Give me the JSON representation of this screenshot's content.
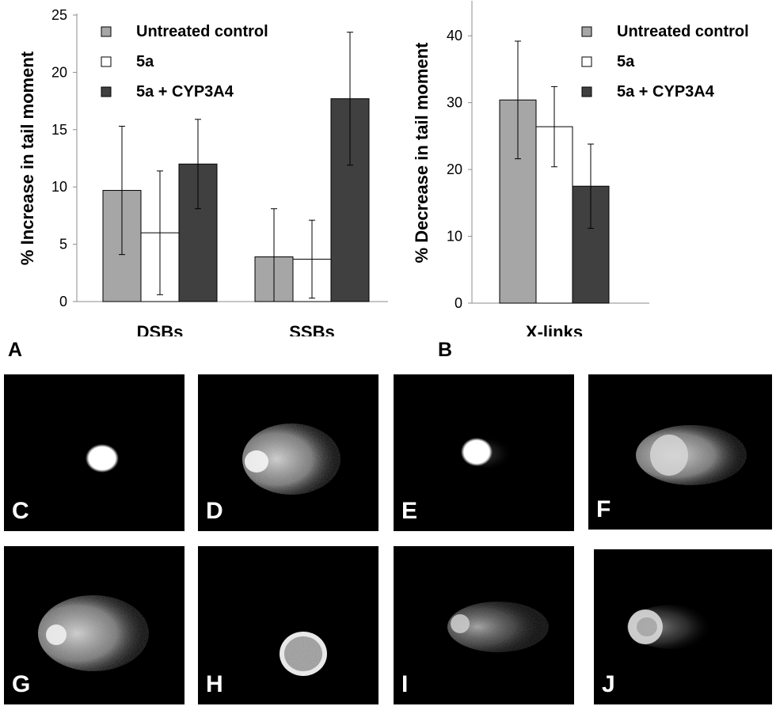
{
  "colors": {
    "untreated": "#a6a6a6",
    "five_a": "#ffffff",
    "five_a_cyp": "#404040",
    "axis": "#8c8c8c",
    "text": "#000000"
  },
  "legend": {
    "items": [
      "Untreated control",
      "5a",
      "5a + CYP3A4"
    ]
  },
  "chart_data": [
    {
      "type": "bar",
      "panel": "A",
      "ylabel": "% Increase in tail moment",
      "xlabel": "",
      "title": "",
      "ylim": [
        0,
        25
      ],
      "yticks": [
        0,
        5,
        10,
        15,
        20,
        25
      ],
      "categories": [
        "DSBs",
        "SSBs"
      ],
      "series": [
        {
          "name": "Untreated control",
          "values": [
            9.7,
            3.9
          ],
          "errors": [
            5.6,
            4.2
          ]
        },
        {
          "name": "5a",
          "values": [
            6.0,
            3.7
          ],
          "errors": [
            5.4,
            3.4
          ]
        },
        {
          "name": "5a + CYP3A4",
          "values": [
            12.0,
            17.7
          ],
          "errors": [
            3.9,
            5.8
          ]
        }
      ],
      "legend_position": "top"
    },
    {
      "type": "bar",
      "panel": "B",
      "ylabel": "% Decrease in tail moment",
      "xlabel": "",
      "title": "",
      "ylim": [
        0,
        45
      ],
      "yticks": [
        0,
        10,
        20,
        30,
        40
      ],
      "categories": [
        "X-links"
      ],
      "series": [
        {
          "name": "Untreated control",
          "values": [
            30.4
          ],
          "errors": [
            8.8
          ]
        },
        {
          "name": "5a",
          "values": [
            26.4
          ],
          "errors": [
            6.0
          ]
        },
        {
          "name": "5a + CYP3A4",
          "values": [
            17.5
          ],
          "errors": [
            6.3
          ]
        }
      ],
      "legend_position": "top-right"
    }
  ],
  "panel_letters": {
    "a": "A",
    "b": "B"
  },
  "images": [
    {
      "label": "C",
      "comet": "intact-head"
    },
    {
      "label": "D",
      "comet": "large-tail"
    },
    {
      "label": "E",
      "comet": "intact-head"
    },
    {
      "label": "F",
      "comet": "medium-tail"
    },
    {
      "label": "G",
      "comet": "large-tail"
    },
    {
      "label": "H",
      "comet": "ring-head"
    },
    {
      "label": "I",
      "comet": "faint-tail"
    },
    {
      "label": "J",
      "comet": "short-tail"
    }
  ]
}
